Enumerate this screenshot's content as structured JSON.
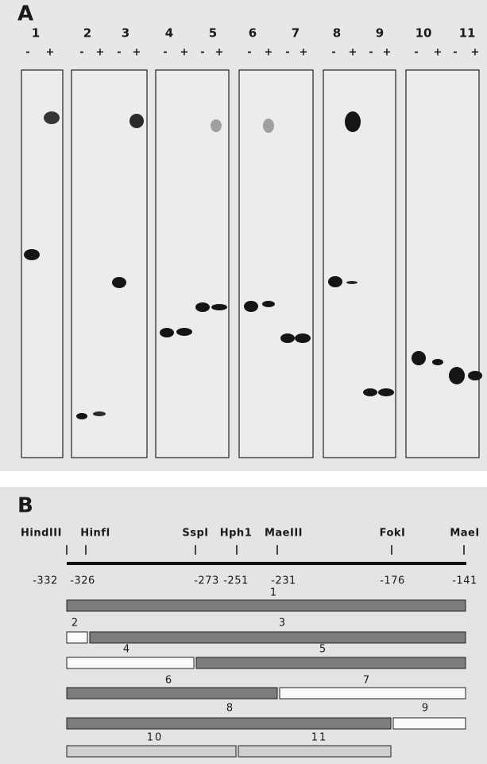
{
  "panel_a": {
    "label": "A",
    "lanes": [
      {
        "number": "1",
        "minus": "-",
        "plus": "+"
      },
      {
        "number": "2",
        "minus": "-",
        "plus": "+"
      },
      {
        "number": "3",
        "minus": "-",
        "plus": "+"
      },
      {
        "number": "4",
        "minus": "-",
        "plus": "+"
      },
      {
        "number": "5",
        "minus": "-",
        "plus": "+"
      },
      {
        "number": "6",
        "minus": "-",
        "plus": "+"
      },
      {
        "number": "7",
        "minus": "-",
        "plus": "+"
      },
      {
        "number": "8",
        "minus": "-",
        "plus": "+"
      },
      {
        "number": "9",
        "minus": "-",
        "plus": "+"
      },
      {
        "number": "10",
        "minus": "-",
        "plus": "+"
      },
      {
        "number": "11",
        "minus": "-",
        "plus": "+"
      }
    ]
  },
  "panel_b": {
    "label": "B",
    "sites": [
      {
        "name": "HindIII",
        "position": "-332"
      },
      {
        "name": "HinfI",
        "position": "-326"
      },
      {
        "name": "SspI",
        "position": "-273"
      },
      {
        "name": "Hph1",
        "position": "-251"
      },
      {
        "name": "MaeIII",
        "position": "-231"
      },
      {
        "name": "FokI",
        "position": "-176"
      },
      {
        "name": "MaeI",
        "position": "-141"
      }
    ],
    "fragments": [
      "1",
      "2",
      "3",
      "4",
      "5",
      "6",
      "7",
      "8",
      "9",
      "10",
      "11"
    ]
  }
}
